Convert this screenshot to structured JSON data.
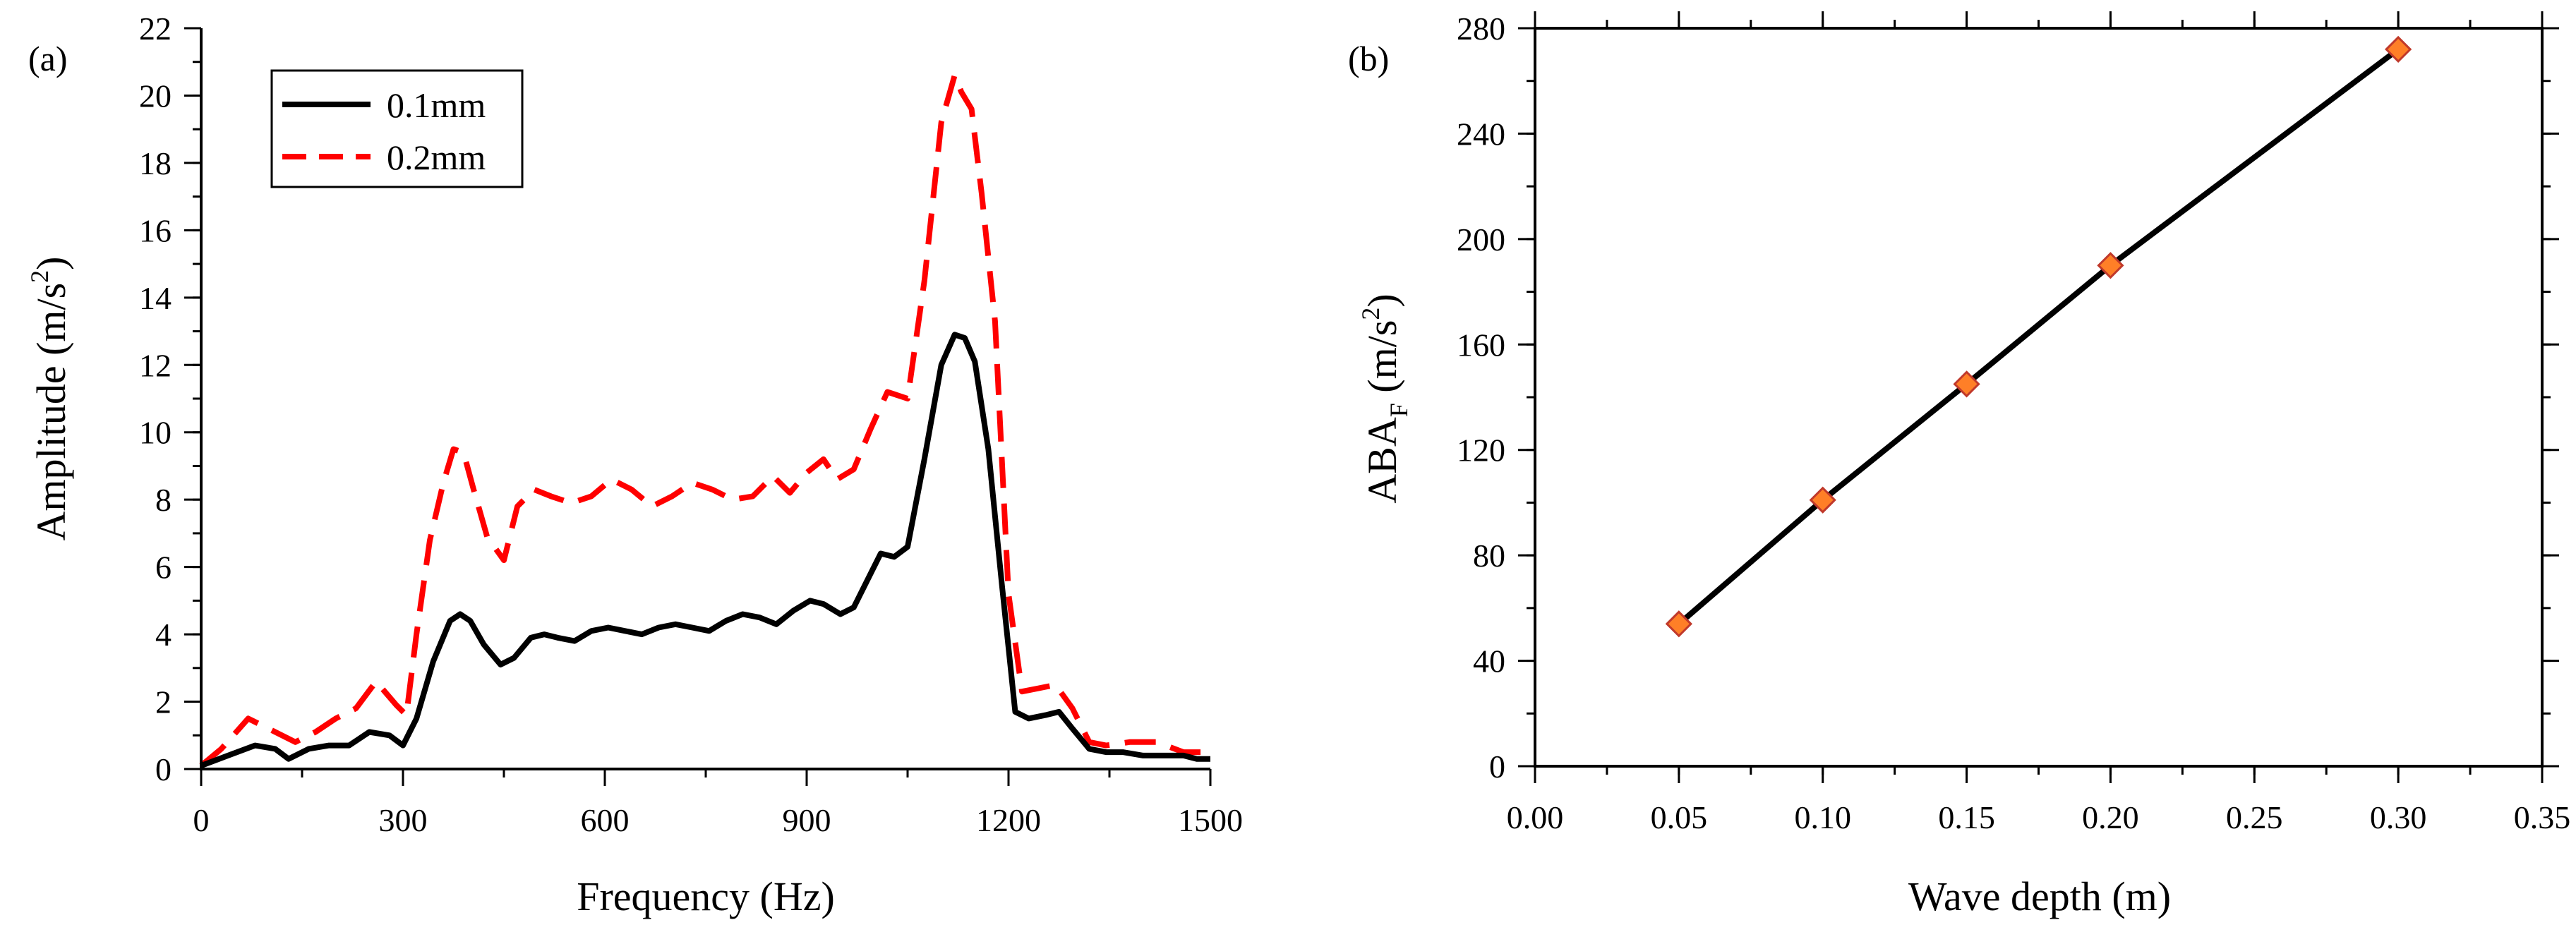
{
  "chart_data": [
    {
      "panel_label": "(a)",
      "type": "line",
      "xlabel": "Frequency (Hz)",
      "ylabel": "Amplitude (m/s",
      "ylabel_sup": "2",
      "ylabel_close": ")",
      "xlim": [
        0,
        1500
      ],
      "ylim": [
        0,
        22
      ],
      "x_ticks": [
        "0",
        "300",
        "600",
        "900",
        "1200",
        "1500"
      ],
      "y_ticks": [
        "0",
        "2",
        "4",
        "6",
        "8",
        "10",
        "12",
        "14",
        "16",
        "18",
        "20",
        "22"
      ],
      "x_tick_values": [
        0,
        300,
        600,
        900,
        1200,
        1500
      ],
      "y_tick_values": [
        0,
        2,
        4,
        6,
        8,
        10,
        12,
        14,
        16,
        18,
        20,
        22
      ],
      "x_minor_step": 150,
      "y_minor_step": 1,
      "legend": {
        "position": "top-left"
      },
      "series": [
        {
          "name": "0.1mm",
          "color": "#000000",
          "dash": "solid",
          "x": [
            0,
            40,
            80,
            110,
            130,
            160,
            190,
            220,
            250,
            280,
            300,
            320,
            345,
            370,
            385,
            400,
            420,
            445,
            465,
            490,
            510,
            530,
            555,
            580,
            605,
            630,
            655,
            680,
            705,
            730,
            755,
            780,
            805,
            830,
            855,
            880,
            905,
            925,
            950,
            970,
            990,
            1010,
            1030,
            1050,
            1075,
            1100,
            1120,
            1135,
            1150,
            1170,
            1190,
            1210,
            1230,
            1255,
            1275,
            1295,
            1320,
            1345,
            1370,
            1400,
            1430,
            1460,
            1480,
            1500
          ],
          "values": [
            0.1,
            0.4,
            0.7,
            0.6,
            0.3,
            0.6,
            0.7,
            0.7,
            1.1,
            1.0,
            0.7,
            1.5,
            3.2,
            4.4,
            4.6,
            4.4,
            3.7,
            3.1,
            3.3,
            3.9,
            4.0,
            3.9,
            3.8,
            4.1,
            4.2,
            4.1,
            4.0,
            4.2,
            4.3,
            4.2,
            4.1,
            4.4,
            4.6,
            4.5,
            4.3,
            4.7,
            5.0,
            4.9,
            4.6,
            4.8,
            5.6,
            6.4,
            6.3,
            6.6,
            9.2,
            12.0,
            12.9,
            12.8,
            12.1,
            9.5,
            5.5,
            1.7,
            1.5,
            1.6,
            1.7,
            1.2,
            0.6,
            0.5,
            0.5,
            0.4,
            0.4,
            0.4,
            0.3,
            0.3
          ]
        },
        {
          "name": "0.2mm",
          "color": "#ff0000",
          "dash": "dashed",
          "x": [
            0,
            30,
            70,
            100,
            140,
            170,
            200,
            230,
            260,
            290,
            305,
            320,
            340,
            360,
            375,
            390,
            405,
            425,
            450,
            470,
            495,
            520,
            550,
            580,
            610,
            640,
            670,
            700,
            730,
            760,
            790,
            820,
            850,
            875,
            900,
            925,
            945,
            970,
            995,
            1020,
            1050,
            1075,
            1100,
            1120,
            1130,
            1145,
            1160,
            1180,
            1200,
            1220,
            1245,
            1270,
            1295,
            1320,
            1345,
            1380,
            1420,
            1460,
            1490,
            1500
          ],
          "values": [
            0.1,
            0.6,
            1.5,
            1.2,
            0.8,
            1.1,
            1.5,
            1.8,
            2.6,
            1.9,
            1.6,
            4.0,
            6.8,
            8.5,
            9.5,
            9.4,
            8.3,
            6.9,
            6.2,
            7.8,
            8.3,
            8.1,
            7.9,
            8.1,
            8.6,
            8.3,
            7.8,
            8.1,
            8.5,
            8.3,
            8.0,
            8.1,
            8.7,
            8.2,
            8.8,
            9.2,
            8.6,
            8.9,
            10.1,
            11.2,
            11.0,
            14.5,
            19.2,
            20.6,
            20.1,
            19.6,
            17.1,
            13.3,
            5.2,
            2.3,
            2.4,
            2.5,
            1.8,
            0.8,
            0.7,
            0.8,
            0.8,
            0.5,
            0.5,
            0.8
          ]
        }
      ]
    },
    {
      "panel_label": "(b)",
      "type": "line",
      "markers": "diamond",
      "xlabel": "Wave depth (m)",
      "ylabel": "ABA",
      "ylabel_sub": "F",
      "ylabel_rest": " (m/s",
      "ylabel_sup": "2",
      "ylabel_close": ")",
      "xlim": [
        0,
        0.35
      ],
      "ylim": [
        0,
        280
      ],
      "x_ticks": [
        "0.00",
        "0.05",
        "0.10",
        "0.15",
        "0.20",
        "0.25",
        "0.30",
        "0.35"
      ],
      "y_ticks": [
        "0",
        "40",
        "80",
        "120",
        "160",
        "200",
        "240",
        "280"
      ],
      "x_tick_values": [
        0,
        0.05,
        0.1,
        0.15,
        0.2,
        0.25,
        0.3,
        0.35
      ],
      "y_tick_values": [
        0,
        40,
        80,
        120,
        160,
        200,
        240,
        280
      ],
      "x_minor_step": 0.025,
      "y_minor_step": 20,
      "line_color": "#000000",
      "marker_fill": "#ff7f27",
      "marker_stroke": "#c0392b",
      "series": [
        {
          "name": "ABA_F",
          "x": [
            0.05,
            0.1,
            0.15,
            0.2,
            0.3
          ],
          "values": [
            54,
            101,
            145,
            190,
            272
          ]
        }
      ]
    }
  ]
}
